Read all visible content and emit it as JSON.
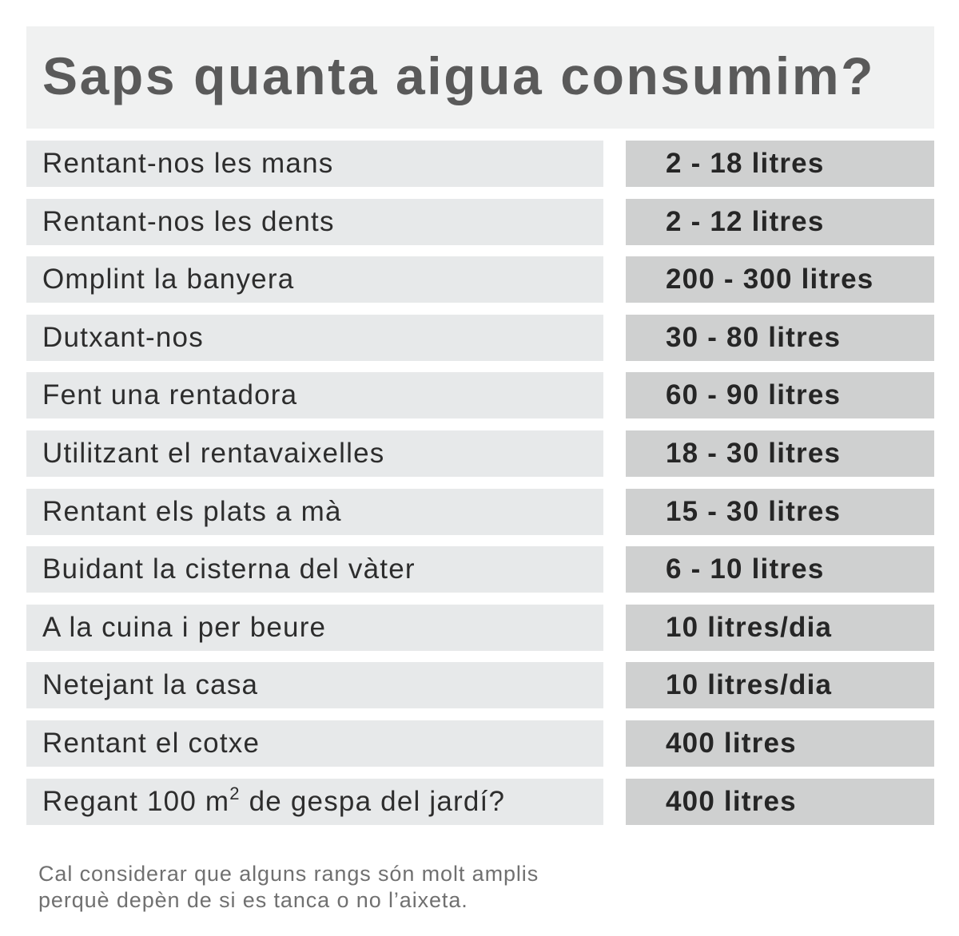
{
  "title": "Saps quanta aigua consumim?",
  "rows": [
    {
      "activity": "Rentant-nos les mans",
      "amount": "2 - 18 litres"
    },
    {
      "activity": "Rentant-nos les dents",
      "amount": "2 - 12 litres"
    },
    {
      "activity": "Omplint la banyera",
      "amount": "200 - 300 litres"
    },
    {
      "activity": "Dutxant-nos",
      "amount": "30 - 80 litres"
    },
    {
      "activity": "Fent una rentadora",
      "amount": "60 - 90 litres"
    },
    {
      "activity": "Utilitzant el rentavaixelles",
      "amount": "18 - 30 litres"
    },
    {
      "activity": "Rentant els plats a mà",
      "amount": "15 - 30 litres"
    },
    {
      "activity": "Buidant la cisterna del vàter",
      "amount": "6 - 10 litres"
    },
    {
      "activity": "A la cuina i per beure",
      "amount": "10 litres/dia"
    },
    {
      "activity": "Netejant la casa",
      "amount": "10 litres/dia"
    },
    {
      "activity": "Rentant el cotxe",
      "amount": "400 litres"
    },
    {
      "activity_prefix": "Regant 100 m",
      "activity_sup": "2",
      "activity_suffix": " de gespa del jardí?",
      "amount": "400 litres"
    }
  ],
  "footnote": {
    "line1": "Cal considerar que alguns rangs són molt amplis",
    "line2": "perquè depèn de si es tanca o no l’aixeta."
  }
}
